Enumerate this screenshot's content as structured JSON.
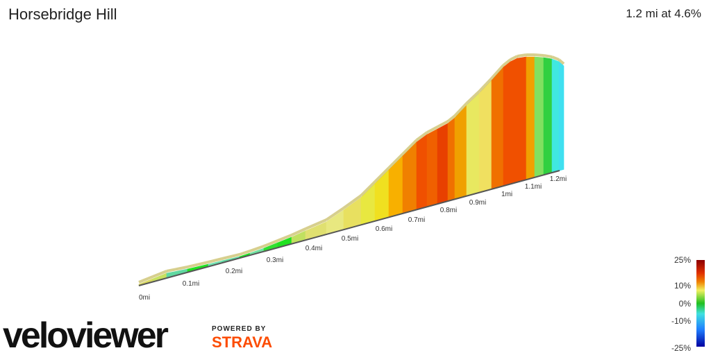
{
  "header": {
    "title": "Horsebridge Hill",
    "summary": "1.2 mi at 4.6%"
  },
  "distance_labels": [
    "0mi",
    "0.1mi",
    "0.2mi",
    "0.3mi",
    "0.4mi",
    "0.5mi",
    "0.6mi",
    "0.7mi",
    "0.8mi",
    "0.9mi",
    "1mi",
    "1.1mi",
    "1.2mi"
  ],
  "gradient_scale": [
    "25%",
    "10%",
    "0%",
    "-10%",
    "-25%"
  ],
  "branding": {
    "logo": "veloviewer",
    "powered_by": "POWERED BY",
    "partner": "STRAVA"
  }
}
